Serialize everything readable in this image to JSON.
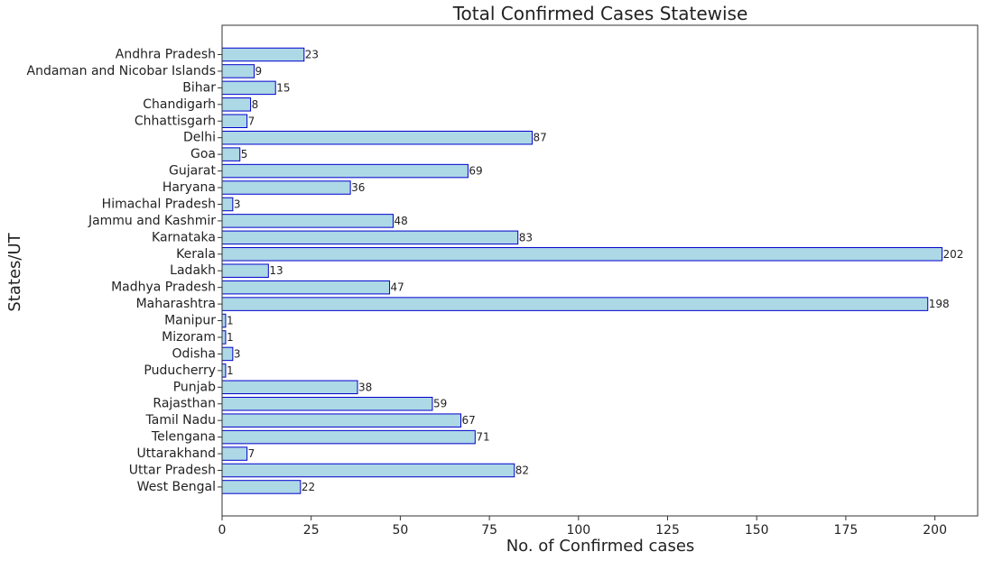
{
  "chart_data": {
    "type": "bar",
    "orientation": "horizontal",
    "title": "Total Confirmed Cases Statewise",
    "xlabel": "No. of Confirmed cases",
    "ylabel": "States/UT",
    "xlim": [
      0,
      212
    ],
    "xticks": [
      0,
      25,
      50,
      75,
      100,
      125,
      150,
      175,
      200
    ],
    "grid": false,
    "categories": [
      "Andhra Pradesh",
      "Andaman and Nicobar Islands",
      "Bihar",
      "Chandigarh",
      "Chhattisgarh",
      "Delhi",
      "Goa",
      "Gujarat",
      "Haryana",
      "Himachal Pradesh",
      "Jammu and Kashmir",
      "Karnataka",
      "Kerala",
      "Ladakh",
      "Madhya Pradesh",
      "Maharashtra",
      "Manipur",
      "Mizoram",
      "Odisha",
      "Puducherry",
      "Punjab",
      "Rajasthan",
      "Tamil Nadu",
      "Telengana",
      "Uttarakhand",
      "Uttar Pradesh",
      "West Bengal"
    ],
    "values": [
      23,
      9,
      15,
      8,
      7,
      87,
      5,
      69,
      36,
      3,
      48,
      83,
      202,
      13,
      47,
      198,
      1,
      1,
      3,
      1,
      38,
      59,
      67,
      71,
      7,
      82,
      22
    ],
    "colors": {
      "bar_fill": "#add8e6",
      "bar_edge": "#0000cd",
      "axis": "#333333",
      "text": "#222222"
    }
  }
}
